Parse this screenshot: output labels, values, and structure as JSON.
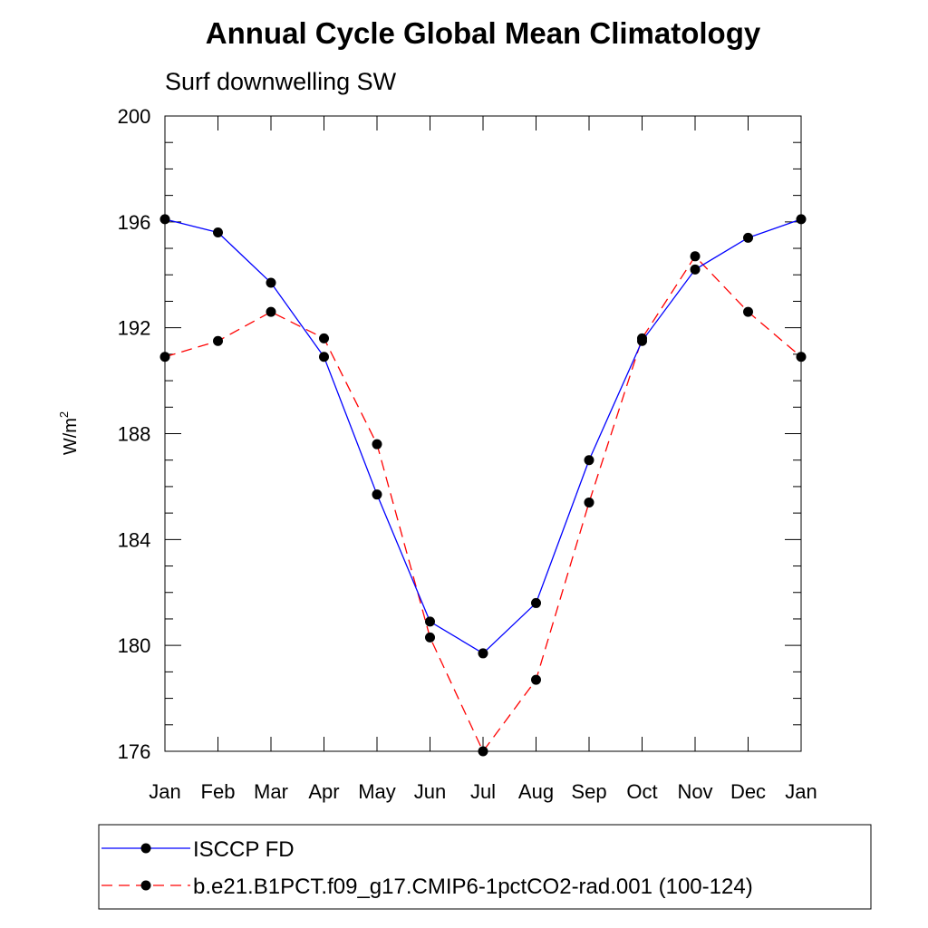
{
  "chart_data": {
    "type": "line",
    "title": "Annual Cycle Global Mean Climatology",
    "subtitle": "Surf downwelling SW",
    "ylabel": "W/m",
    "ylabel_superscript": "2",
    "xlabel": "",
    "categories": [
      "Jan",
      "Feb",
      "Mar",
      "Apr",
      "May",
      "Jun",
      "Jul",
      "Aug",
      "Sep",
      "Oct",
      "Nov",
      "Dec",
      "Jan"
    ],
    "ylim": [
      176,
      200
    ],
    "yticks": [
      "176",
      "180",
      "184",
      "188",
      "192",
      "196",
      "200"
    ],
    "grid": false,
    "legend_position": "bottom",
    "series": [
      {
        "name": "ISCCP FD",
        "color": "#0000ff",
        "dash": "solid",
        "marker": "filled-circle",
        "values": [
          196.1,
          195.6,
          193.7,
          190.9,
          185.7,
          180.9,
          179.7,
          181.6,
          187.0,
          191.5,
          194.2,
          195.4,
          196.1
        ]
      },
      {
        "name": "b.e21.B1PCT.f09_g17.CMIP6-1pctCO2-rad.001 (100-124)",
        "color": "#ff0000",
        "dash": "dashed",
        "marker": "filled-circle",
        "values": [
          190.9,
          191.5,
          192.6,
          191.6,
          187.6,
          180.3,
          176.0,
          178.7,
          185.4,
          191.6,
          194.7,
          192.6,
          190.9
        ]
      }
    ]
  }
}
